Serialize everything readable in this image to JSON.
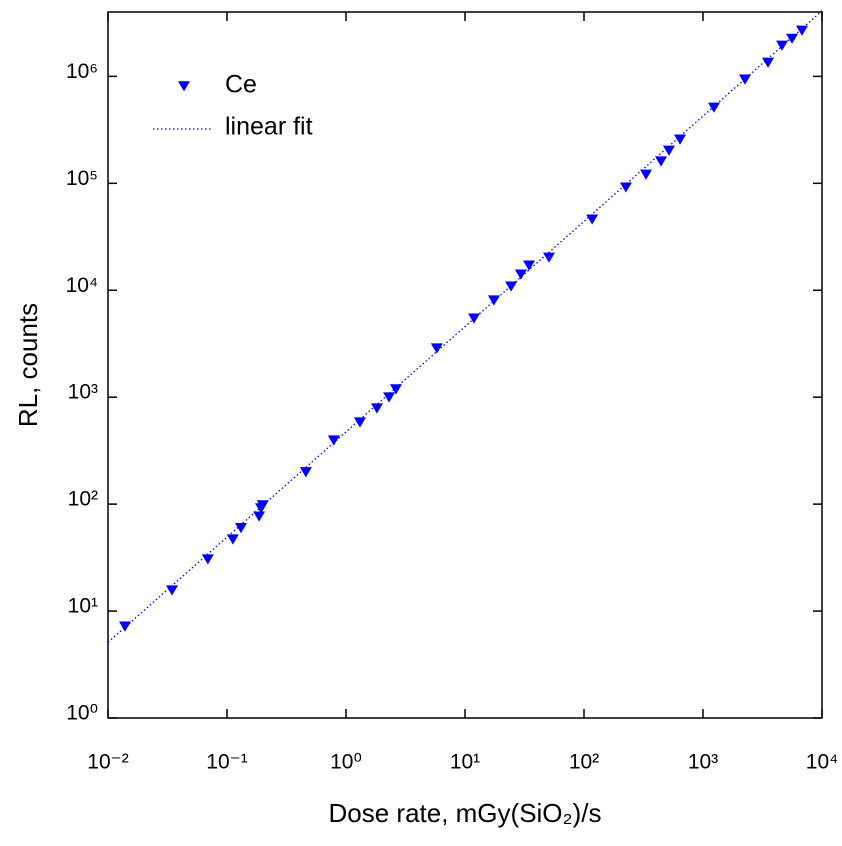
{
  "chart_data": {
    "type": "scatter",
    "x_label": "Dose rate, mGy(SiO₂)/s",
    "y_label": "RL, counts",
    "x_log": true,
    "y_log": true,
    "legend": "upper left",
    "xlim": [
      0.01,
      10000
    ],
    "ylim": [
      1,
      4000000
    ],
    "xticks": [
      {
        "value": 0.01,
        "label": "10⁻²"
      },
      {
        "value": 0.1,
        "label": "10⁻¹"
      },
      {
        "value": 1,
        "label": "10⁰"
      },
      {
        "value": 10,
        "label": "10¹"
      },
      {
        "value": 100,
        "label": "10²"
      },
      {
        "value": 1000,
        "label": "10³"
      },
      {
        "value": 10000,
        "label": "10⁴"
      }
    ],
    "yticks": [
      {
        "value": 1,
        "label": "10⁰"
      },
      {
        "value": 10,
        "label": "10¹"
      },
      {
        "value": 100,
        "label": "10²"
      },
      {
        "value": 1000,
        "label": "10³"
      },
      {
        "value": 10000,
        "label": "10⁴"
      },
      {
        "value": 100000,
        "label": "10⁵"
      },
      {
        "value": 1000000,
        "label": "10⁶"
      }
    ],
    "series": [
      {
        "name": "Ce",
        "type": "scatter",
        "marker": "triangle-down",
        "color": "#0000ff",
        "x": [
          0.0139,
          0.0345,
          0.069,
          0.112,
          0.131,
          0.186,
          0.193,
          0.2,
          0.46,
          0.79,
          1.31,
          1.82,
          2.3,
          2.63,
          5.8,
          11.9,
          17.5,
          24.4,
          29.5,
          34.5,
          50.8,
          117,
          225,
          332,
          444,
          518,
          641,
          1237,
          2254,
          3520,
          4614,
          5600,
          6790
        ],
        "values": [
          7.2,
          15.7,
          30.6,
          47,
          60,
          77,
          92,
          98,
          200,
          396,
          584,
          789,
          1000,
          1190,
          2870,
          5470,
          8070,
          10900,
          14100,
          17100,
          20300,
          46100,
          91900,
          121000,
          161000,
          203000,
          258000,
          513000,
          938000,
          1350000,
          1950000,
          2260000,
          2690000
        ]
      },
      {
        "name": "linear fit",
        "type": "line",
        "line_style": "dotted",
        "color": "#0000ff",
        "x": [
          0.01,
          10000
        ],
        "values": [
          5.1,
          4100000
        ]
      }
    ]
  }
}
